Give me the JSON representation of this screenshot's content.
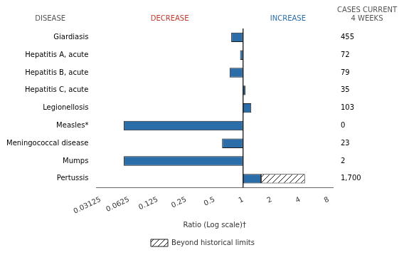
{
  "chart_data": {
    "type": "bar",
    "orientation": "horizontal",
    "log": "x",
    "grid": false,
    "categories": [
      "Giardiasis",
      "Hepatitis A, acute",
      "Hepatitis B, acute",
      "Hepatitis C, acute",
      "Legionellosis",
      "Measles*",
      "Meningococcal disease",
      "Mumps",
      "Pertussis"
    ],
    "series": [
      {
        "color": "#2b6da8",
        "values": [
          0.75,
          0.93,
          0.72,
          1.06,
          1.22,
          0.055,
          0.6,
          0.055,
          1.55
        ]
      },
      {
        "name": "Beyond historical limits",
        "color": "#ffffff",
        "values": [
          null,
          null,
          null,
          null,
          null,
          null,
          null,
          null,
          4.5
        ]
      }
    ],
    "xlabel": "Ratio (Log scale)†",
    "xlim": [
      0.028164,
      8.8766
    ],
    "xticks": [
      0.03125,
      0.0625,
      0.125,
      0.25,
      0.5,
      1,
      2,
      4,
      8
    ],
    "cases": [
      "455",
      "72",
      "79",
      "35",
      "103",
      "0",
      "23",
      "2",
      "1,700"
    ],
    "headers": {
      "categories": {
        "text": "DISEASE",
        "color": "#555555"
      },
      "decrease": {
        "text": "DECREASE",
        "color": "#c0392b"
      },
      "increase": {
        "text": "INCREASE",
        "color": "#2b6da8"
      },
      "cases": {
        "text": "CASES CURRENT\n4 WEEKS",
        "color": "#555555"
      }
    }
  }
}
